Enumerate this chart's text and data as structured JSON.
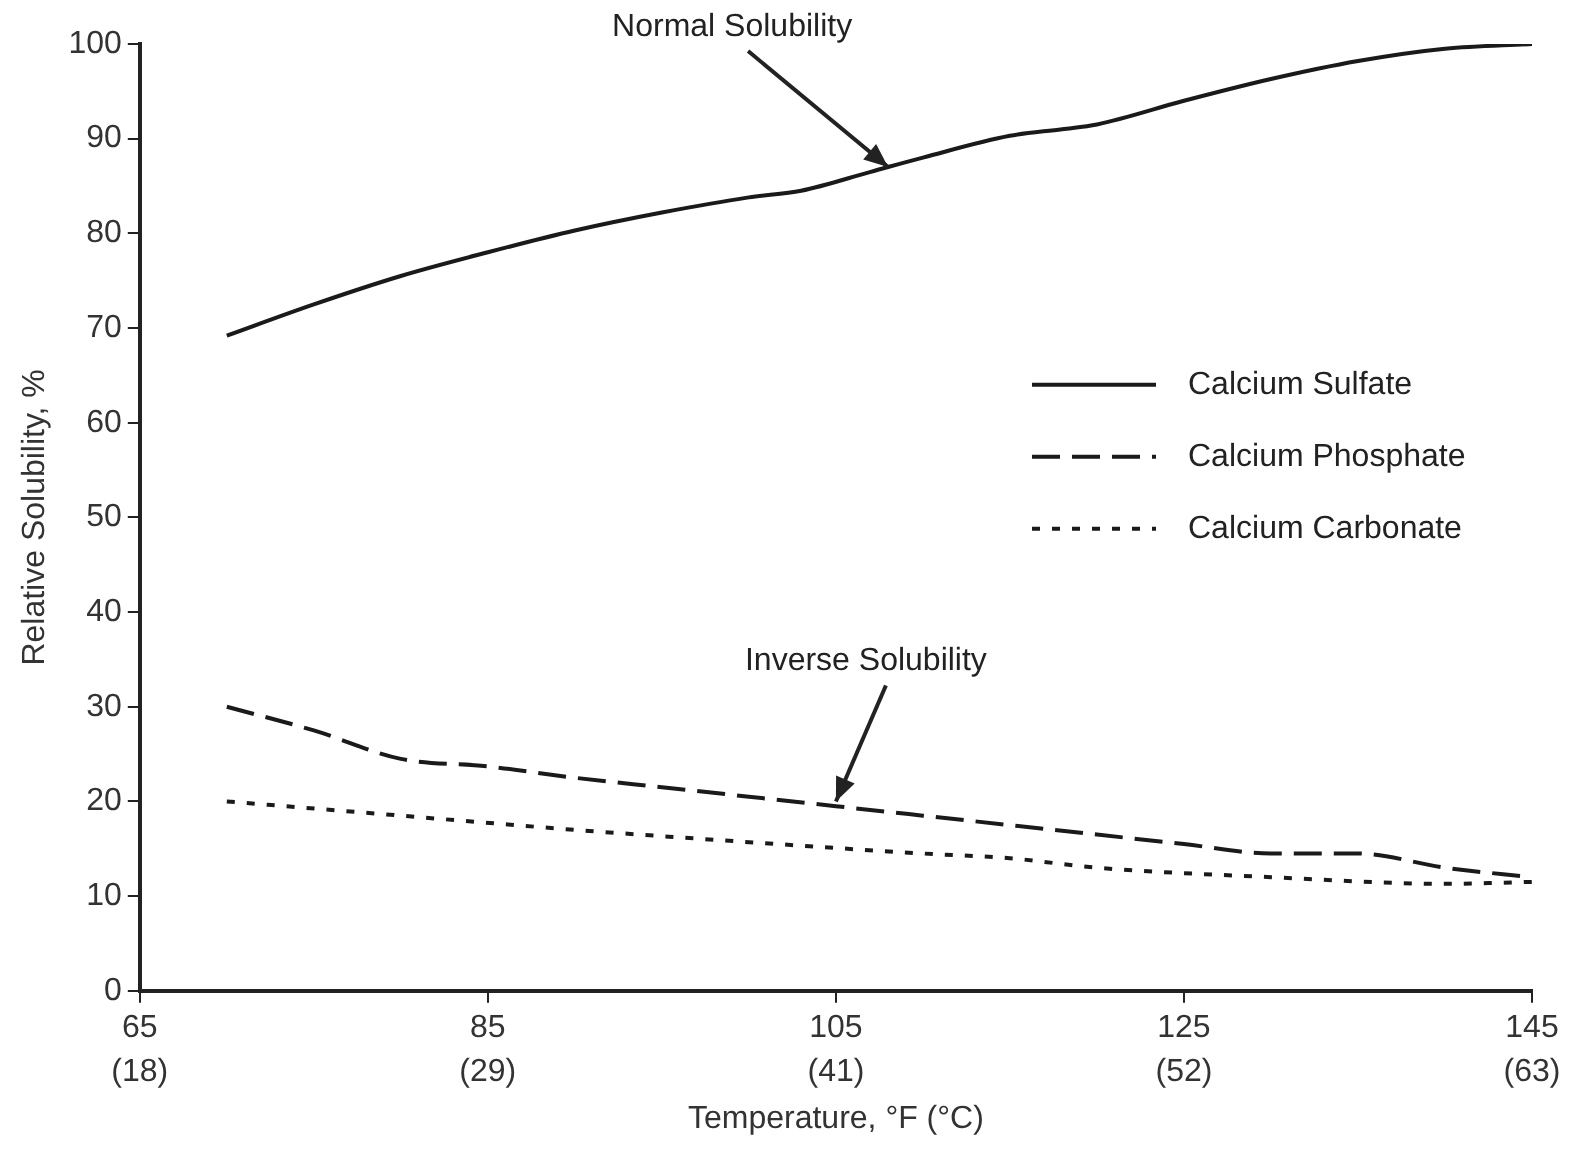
{
  "chart_data": {
    "type": "line",
    "xlabel": "Temperature, °F (°C)",
    "ylabel": "Relative Solubility, %",
    "xlim": [
      65,
      145
    ],
    "xticks": [
      65,
      85,
      105,
      125,
      145
    ],
    "x2lim": [
      18.33,
      62.78
    ],
    "x2ticks": [
      {
        "value": 18.33,
        "label": "(18)"
      },
      {
        "value": 29.44,
        "label": "(29)"
      },
      {
        "value": 40.56,
        "label": "(41)"
      },
      {
        "value": 51.67,
        "label": "(52)"
      },
      {
        "value": 62.78,
        "label": "(63)"
      }
    ],
    "ylim": [
      0,
      100
    ],
    "yticks": [
      0,
      10,
      20,
      30,
      40,
      50,
      60,
      70,
      80,
      90,
      100
    ],
    "grid": false,
    "legend": "right",
    "marker": "none",
    "series": [
      {
        "name": "Calcium Sulfate",
        "color": "#1a1a1a",
        "line_style": "solid",
        "x": [
          70,
          75,
          80,
          85,
          90,
          95,
          100,
          103,
          107,
          110,
          115,
          118,
          120,
          125,
          130,
          135,
          140,
          145
        ],
        "values": [
          69.2,
          72.5,
          75.5,
          78,
          80.3,
          82.2,
          83.8,
          84.5,
          86.5,
          88,
          90.3,
          91,
          91.5,
          94,
          96.3,
          98.2,
          99.5,
          100
        ]
      },
      {
        "name": "Calcium Phosphate",
        "color": "#1a1a1a",
        "line_style": "dashed",
        "x": [
          70,
          75,
          80,
          85,
          90,
          95,
          100,
          105,
          110,
          115,
          120,
          125,
          130,
          135,
          140,
          145
        ],
        "values": [
          30,
          27.5,
          24.5,
          23.7,
          22.5,
          21.5,
          20.5,
          19.5,
          18.5,
          17.5,
          16.5,
          15.5,
          14.5,
          14.5,
          13,
          12
        ]
      },
      {
        "name": "Calcium Carbonate",
        "color": "#1a1a1a",
        "line_style": "dotted",
        "x": [
          70,
          80,
          90,
          100,
          110,
          115,
          120,
          130,
          140,
          145
        ],
        "values": [
          20,
          18.5,
          17,
          15.7,
          14.5,
          14,
          13,
          12,
          11.3,
          11.5
        ]
      }
    ],
    "annotations": [
      {
        "text": "Normal Solubility",
        "x": 108,
        "y": 87
      },
      {
        "text": "Inverse Solubility",
        "x": 105,
        "y": 20
      }
    ]
  }
}
